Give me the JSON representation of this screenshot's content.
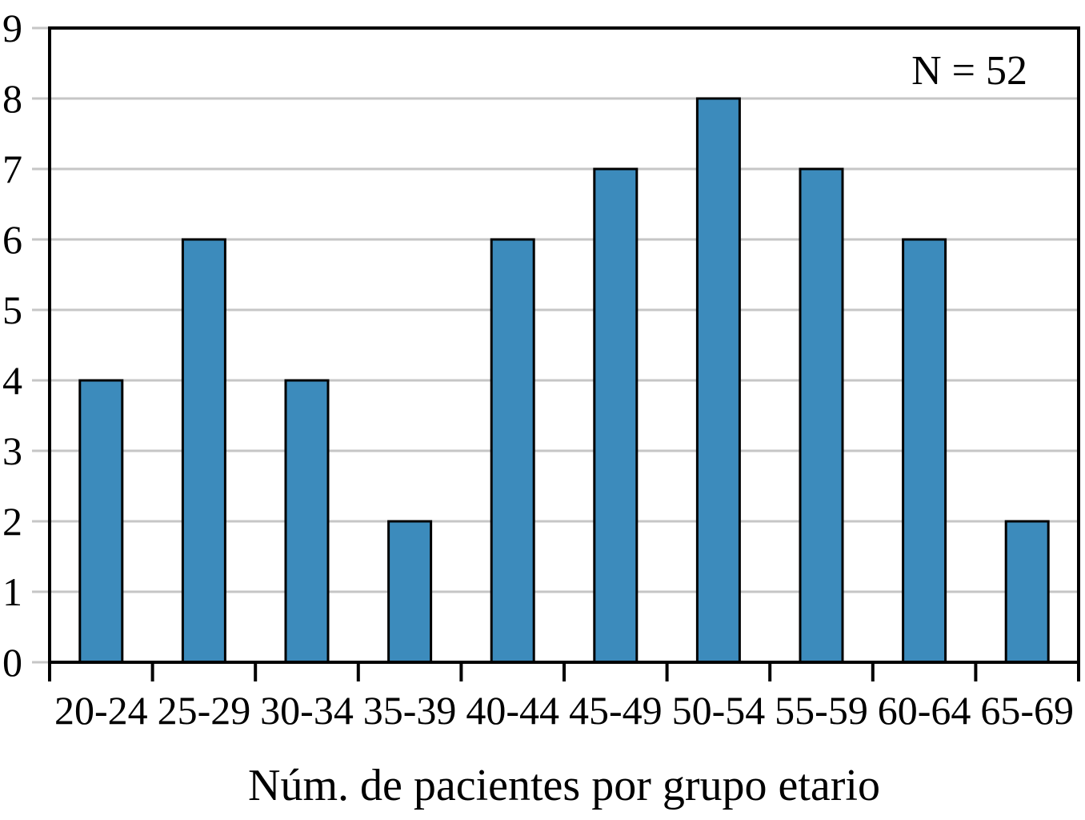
{
  "chart_data": {
    "type": "bar",
    "title": "",
    "xlabel": "Núm. de pacientes por grupo etario",
    "ylabel": "",
    "annotation": "N = 52",
    "categories": [
      "20-24",
      "25-29",
      "30-34",
      "35-39",
      "40-44",
      "45-49",
      "50-54",
      "55-59",
      "60-64",
      "65-69"
    ],
    "values": [
      4,
      6,
      4,
      2,
      6,
      7,
      8,
      7,
      6,
      2
    ],
    "ylim": [
      0,
      9
    ],
    "yticks": [
      0,
      1,
      2,
      3,
      4,
      5,
      6,
      7,
      8,
      9
    ],
    "grid": "horizontal",
    "legend": "none",
    "annotation_position": "top-right",
    "colors": {
      "bar_fill": "#3C8BBC",
      "bar_border": "#000000",
      "gridline": "#C6C6C6",
      "axis": "#000000",
      "background": "#FFFFFF",
      "text": "#000000"
    }
  }
}
